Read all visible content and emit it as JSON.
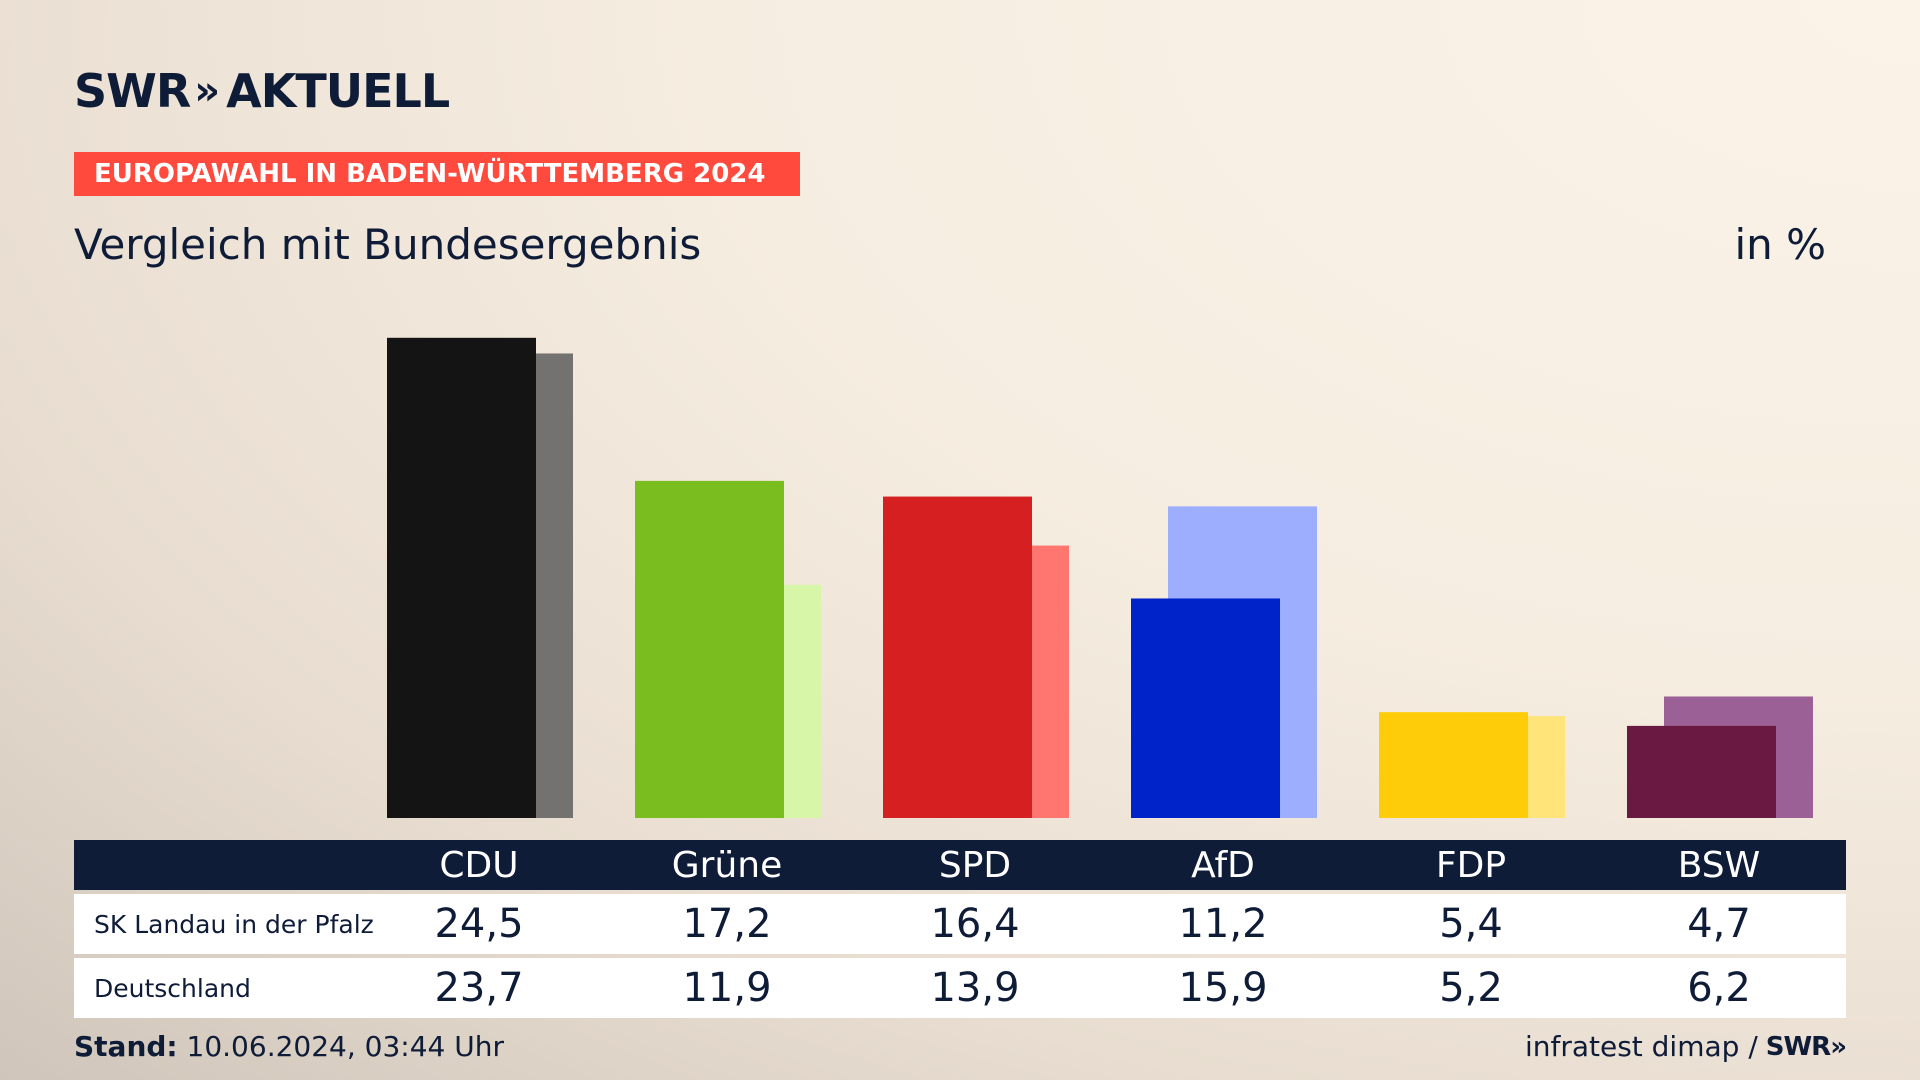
{
  "brand": {
    "swr": "SWR",
    "chevrons": "»",
    "aktuell": "AKTUELL"
  },
  "banner": "EUROPAWAHL IN BADEN-WÜRTTEMBERG 2024",
  "subtitle": "Vergleich mit Bundesergebnis",
  "unit": "in %",
  "chart_data": {
    "type": "bar",
    "categories": [
      "CDU",
      "Grüne",
      "SPD",
      "AfD",
      "FDP",
      "BSW"
    ],
    "series": [
      {
        "name": "SK Landau in der Pfalz",
        "values": [
          24.5,
          17.2,
          16.4,
          11.2,
          5.4,
          4.7
        ]
      },
      {
        "name": "Deutschland",
        "values": [
          23.7,
          11.9,
          13.9,
          15.9,
          5.2,
          6.2
        ]
      }
    ],
    "value_labels": [
      [
        "24,5",
        "17,2",
        "16,4",
        "11,2",
        "5,4",
        "4,7"
      ],
      [
        "23,7",
        "11,9",
        "13,9",
        "15,9",
        "5,2",
        "6,2"
      ]
    ],
    "colors": {
      "primary": [
        "#141414",
        "#7abd1e",
        "#d61f20",
        "#0022c9",
        "#ffcc0a",
        "#6a1a42"
      ],
      "secondary": [
        "#747270",
        "#d7f6a8",
        "#ff7570",
        "#9daefe",
        "#ffe47a",
        "#9b6197"
      ]
    },
    "ylim": [
      0,
      25
    ],
    "grid": false,
    "legend": "table-below"
  },
  "table": {
    "rows": [
      {
        "label": "SK Landau in der Pfalz"
      },
      {
        "label": "Deutschland"
      }
    ]
  },
  "footer": {
    "stand_label": "Stand:",
    "stand_value": "10.06.2024, 03:44 Uhr",
    "source": "infratest dimap /",
    "source_logo": "SWR»"
  }
}
